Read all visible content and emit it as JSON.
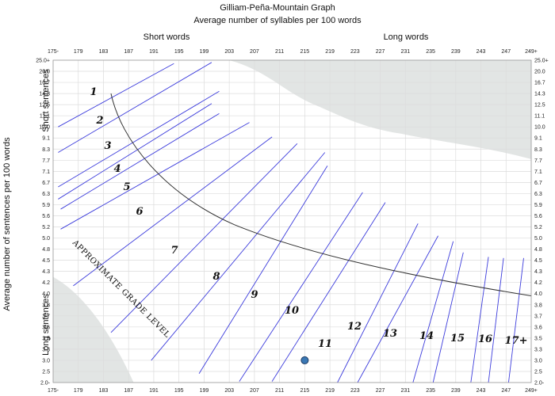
{
  "chart_data": {
    "type": "scatter",
    "title": "Gilliam-Peña-Mountain Graph",
    "subtitle": "Average number of syllables per 100 words",
    "xlabel": "Average number of syllables per 100 words",
    "ylabel": "Average number of sentences per 100 words",
    "x_group_labels": {
      "left": "Short words",
      "right": "Long words"
    },
    "y_group_labels": {
      "top": "Short sentences",
      "bottom": "Long sentences"
    },
    "x_ticks": [
      "175-",
      "179",
      "183",
      "187",
      "191",
      "195",
      "199",
      "203",
      "207",
      "211",
      "215",
      "219",
      "223",
      "227",
      "231",
      "235",
      "239",
      "243",
      "247",
      "249+"
    ],
    "y_ticks": [
      "25.0+",
      "20.0",
      "16.7",
      "14.3",
      "12.5",
      "11.1",
      "10.0",
      "9.1",
      "8.3",
      "7.7",
      "7.1",
      "6.7",
      "6.3",
      "5.9",
      "5.6",
      "5.2",
      "5.0",
      "4.8",
      "4.5",
      "4.3",
      "4.2",
      "4.0",
      "3.8",
      "3.7",
      "3.6",
      "3.5",
      "3.3",
      "3.0",
      "2.5",
      "2.0-"
    ],
    "grade_labels": [
      "1",
      "2",
      "3",
      "4",
      "5",
      "6",
      "7",
      "8",
      "9",
      "10",
      "11",
      "12",
      "13",
      "14",
      "15",
      "16",
      "17+"
    ],
    "highlighted_grade": "11",
    "curve_label": "APPROXIMATE GRADE LEVEL",
    "point": {
      "x": 215,
      "y": 3.0
    },
    "colors": {
      "grade_lines": "#3c3cdc",
      "highlight": "#3a78c8",
      "point": "#3a78b4",
      "shaded": "#e2e5e4",
      "grid": "#dcdcdc"
    }
  }
}
